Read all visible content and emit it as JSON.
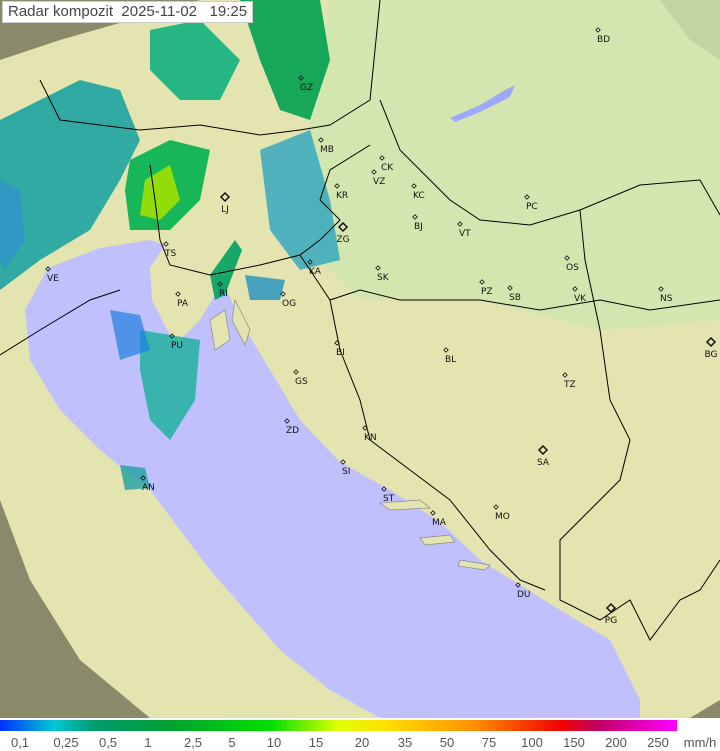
{
  "title": {
    "label": "Radar kompozit",
    "date": "2025-11-02",
    "time": "19:25"
  },
  "map": {
    "colors": {
      "sea": "#c0c0ff",
      "land": "#e6e6b0",
      "outside_range": "#8a8a6a",
      "border": "#000000",
      "coast": "#888888"
    },
    "cities": [
      "GZ",
      "BD",
      "MB",
      "CK",
      "VZ",
      "KR",
      "KC",
      "LJ",
      "TS",
      "ZG",
      "BJ",
      "VT",
      "PC",
      "OS",
      "VE",
      "KA",
      "SK",
      "RI",
      "PA",
      "OG",
      "PZ",
      "SB",
      "VK",
      "NS",
      "PU",
      "BI",
      "BL",
      "BG",
      "GS",
      "TZ",
      "ZD",
      "KN",
      "SA",
      "AN",
      "SI",
      "ST",
      "MA",
      "MO",
      "DU",
      "PG"
    ]
  },
  "legend": {
    "unit": "mm/h",
    "ticks": [
      "0,1",
      "0,25",
      "0,5",
      "1",
      "2,5",
      "5",
      "10",
      "15",
      "20",
      "35",
      "50",
      "75",
      "100",
      "150",
      "200",
      "250"
    ]
  }
}
